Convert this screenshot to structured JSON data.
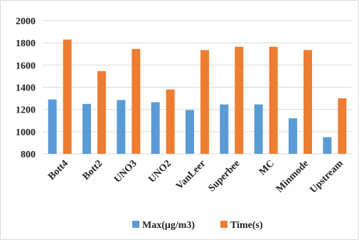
{
  "chart_data": {
    "type": "bar",
    "categories": [
      "Bott4",
      "Bott2",
      "UNO3",
      "UNO2",
      "VanLeer",
      "Superbee",
      "MC",
      "Minmode",
      "Upstream"
    ],
    "series": [
      {
        "name": "Max(μg/m3)",
        "color": "#5B9BD5",
        "values": [
          1290,
          1250,
          1285,
          1265,
          1195,
          1245,
          1245,
          1120,
          950
        ]
      },
      {
        "name": "Time(s)",
        "color": "#ED7D31",
        "values": [
          1830,
          1545,
          1745,
          1380,
          1735,
          1765,
          1765,
          1735,
          1300
        ]
      }
    ],
    "ylim": [
      800,
      2000
    ],
    "yticks": [
      "800",
      "1000",
      "1200",
      "1400",
      "1600",
      "1800",
      "2000"
    ],
    "grid": true,
    "legend_position": "bottom",
    "title": "",
    "xlabel": "",
    "ylabel": ""
  }
}
